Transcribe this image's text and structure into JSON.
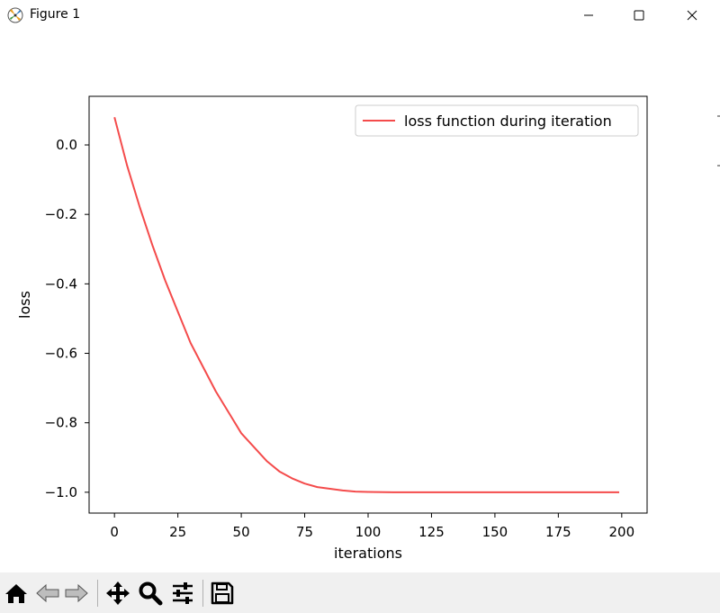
{
  "window": {
    "title": "Figure 1",
    "controls": [
      "minimize",
      "maximize",
      "close"
    ]
  },
  "toolbar": {
    "buttons": [
      "home-icon",
      "back-icon",
      "forward-icon",
      "pan-icon",
      "zoom-icon",
      "configure-subplots-icon",
      "save-icon"
    ]
  },
  "chart_data": {
    "type": "line",
    "title": "",
    "xlabel": "iterations",
    "ylabel": "loss",
    "xlim": [
      -10,
      210
    ],
    "ylim": [
      -1.06,
      0.14
    ],
    "xticks": [
      0,
      25,
      50,
      75,
      100,
      125,
      150,
      175,
      200
    ],
    "xtick_labels": [
      "0",
      "25",
      "50",
      "75",
      "100",
      "125",
      "150",
      "175",
      "200"
    ],
    "yticks": [
      0.0,
      -0.2,
      -0.4,
      -0.6,
      -0.8,
      -1.0
    ],
    "ytick_labels": [
      "0.0",
      "−0.2",
      "−0.4",
      "−0.6",
      "−0.8",
      "−1.0"
    ],
    "grid": false,
    "legend": "upper right",
    "series": [
      {
        "name": "loss function during iteration",
        "color": "#f44b4b",
        "x": [
          0,
          5,
          10,
          15,
          20,
          25,
          30,
          35,
          40,
          45,
          50,
          55,
          60,
          65,
          70,
          75,
          80,
          85,
          90,
          95,
          100,
          110,
          120,
          130,
          140,
          150,
          160,
          170,
          180,
          190,
          199
        ],
        "y": [
          0.08,
          -0.06,
          -0.18,
          -0.29,
          -0.39,
          -0.48,
          -0.57,
          -0.64,
          -0.71,
          -0.77,
          -0.83,
          -0.87,
          -0.91,
          -0.94,
          -0.96,
          -0.975,
          -0.985,
          -0.99,
          -0.995,
          -0.998,
          -0.999,
          -1.0,
          -1.0,
          -1.0,
          -1.0,
          -1.0,
          -1.0,
          -1.0,
          -1.0,
          -1.0,
          -1.0
        ]
      }
    ]
  }
}
